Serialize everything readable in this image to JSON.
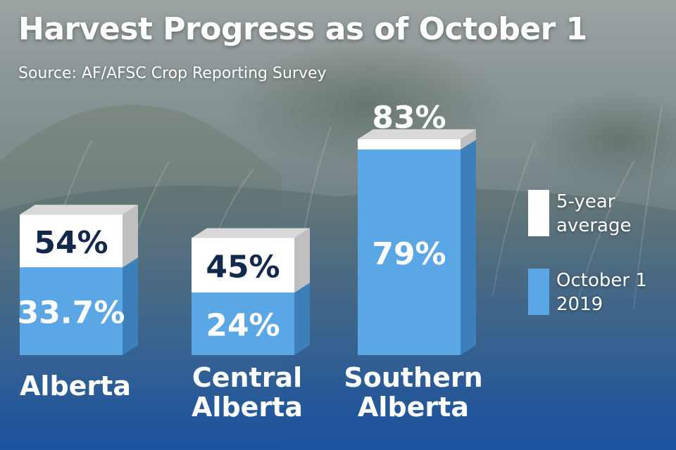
{
  "header": {
    "title": "Harvest Progress as of October 1",
    "source": "Source: AF/AFSC Crop Reporting Survey"
  },
  "legend": {
    "items": [
      {
        "line1": "5-year",
        "line2": "average",
        "color": "#ffffff"
      },
      {
        "line1": "October 1",
        "line2": "2019",
        "color": "#5ba7e6"
      }
    ]
  },
  "colors": {
    "avg_front": "#ffffff",
    "avg_top": "#d9d9d9",
    "avg_side": "#bfbfbf",
    "cur_front": "#5ba7e6",
    "cur_side": "#3d7fb8",
    "avg_label": "#13294b",
    "cur_label": "#ffffff"
  },
  "chart_data": {
    "type": "bar",
    "categories": [
      {
        "line1": "Alberta",
        "line2": ""
      },
      {
        "line1": "Central",
        "line2": "Alberta"
      },
      {
        "line1": "Southern",
        "line2": "Alberta"
      }
    ],
    "series": [
      {
        "name": "October 1 2019",
        "values": [
          33.7,
          24,
          79
        ],
        "labels": [
          "33.7%",
          "24%",
          "79%"
        ]
      },
      {
        "name": "5-year average",
        "values": [
          54,
          45,
          83
        ],
        "labels": [
          "54%",
          "45%",
          "83%"
        ]
      }
    ]
  }
}
